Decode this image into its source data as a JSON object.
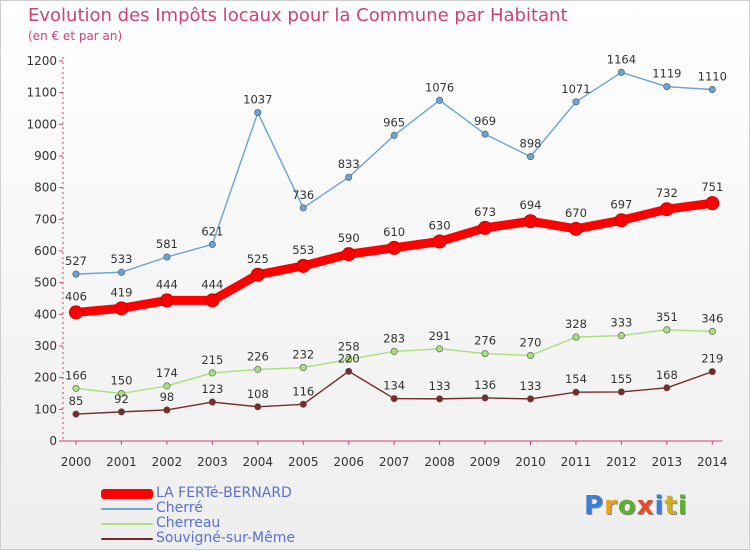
{
  "title": "Evolution des Impôts locaux pour la Commune par Habitant",
  "subtitle": "(en € et par an)",
  "logo": {
    "text": "Proxiti",
    "colors": [
      "#3b7fd4",
      "#e8a020",
      "#5bb030",
      "#e84a2a",
      "#3b7fd4",
      "#d0b020",
      "#5bb030"
    ]
  },
  "chart_data": {
    "type": "line",
    "title": "Evolution des Impôts locaux pour la Commune par Habitant",
    "subtitle": "(en € et par an)",
    "xlabel": "",
    "ylabel": "",
    "x": [
      "2000",
      "2001",
      "2002",
      "2003",
      "2004",
      "2005",
      "2006",
      "2007",
      "2008",
      "2009",
      "2010",
      "2011",
      "2012",
      "2013",
      "2014"
    ],
    "ylim": [
      0,
      1200
    ],
    "yticks": [
      0,
      100,
      200,
      300,
      400,
      500,
      600,
      700,
      800,
      900,
      1000,
      1100,
      1200
    ],
    "grid": false,
    "legend_position": "bottom-left",
    "series": [
      {
        "name": "LA FERTé-BERNARD",
        "color": "#ff0000",
        "emphasis": true,
        "values": [
          406,
          419,
          444,
          444,
          525,
          553,
          590,
          610,
          630,
          673,
          694,
          670,
          697,
          732,
          751
        ]
      },
      {
        "name": "Cherré",
        "color": "#6aa3d8",
        "emphasis": false,
        "values": [
          527,
          533,
          581,
          621,
          1037,
          736,
          833,
          965,
          1076,
          969,
          898,
          1071,
          1164,
          1119,
          1110
        ]
      },
      {
        "name": "Cherreau",
        "color": "#a8e07a",
        "emphasis": false,
        "values": [
          166,
          150,
          174,
          215,
          226,
          232,
          258,
          283,
          291,
          276,
          270,
          328,
          333,
          351,
          346
        ]
      },
      {
        "name": "Souvigné-sur-Même",
        "color": "#7a2a2a",
        "emphasis": false,
        "values": [
          85,
          92,
          98,
          123,
          108,
          116,
          220,
          134,
          133,
          136,
          133,
          154,
          155,
          168,
          219
        ]
      }
    ]
  }
}
